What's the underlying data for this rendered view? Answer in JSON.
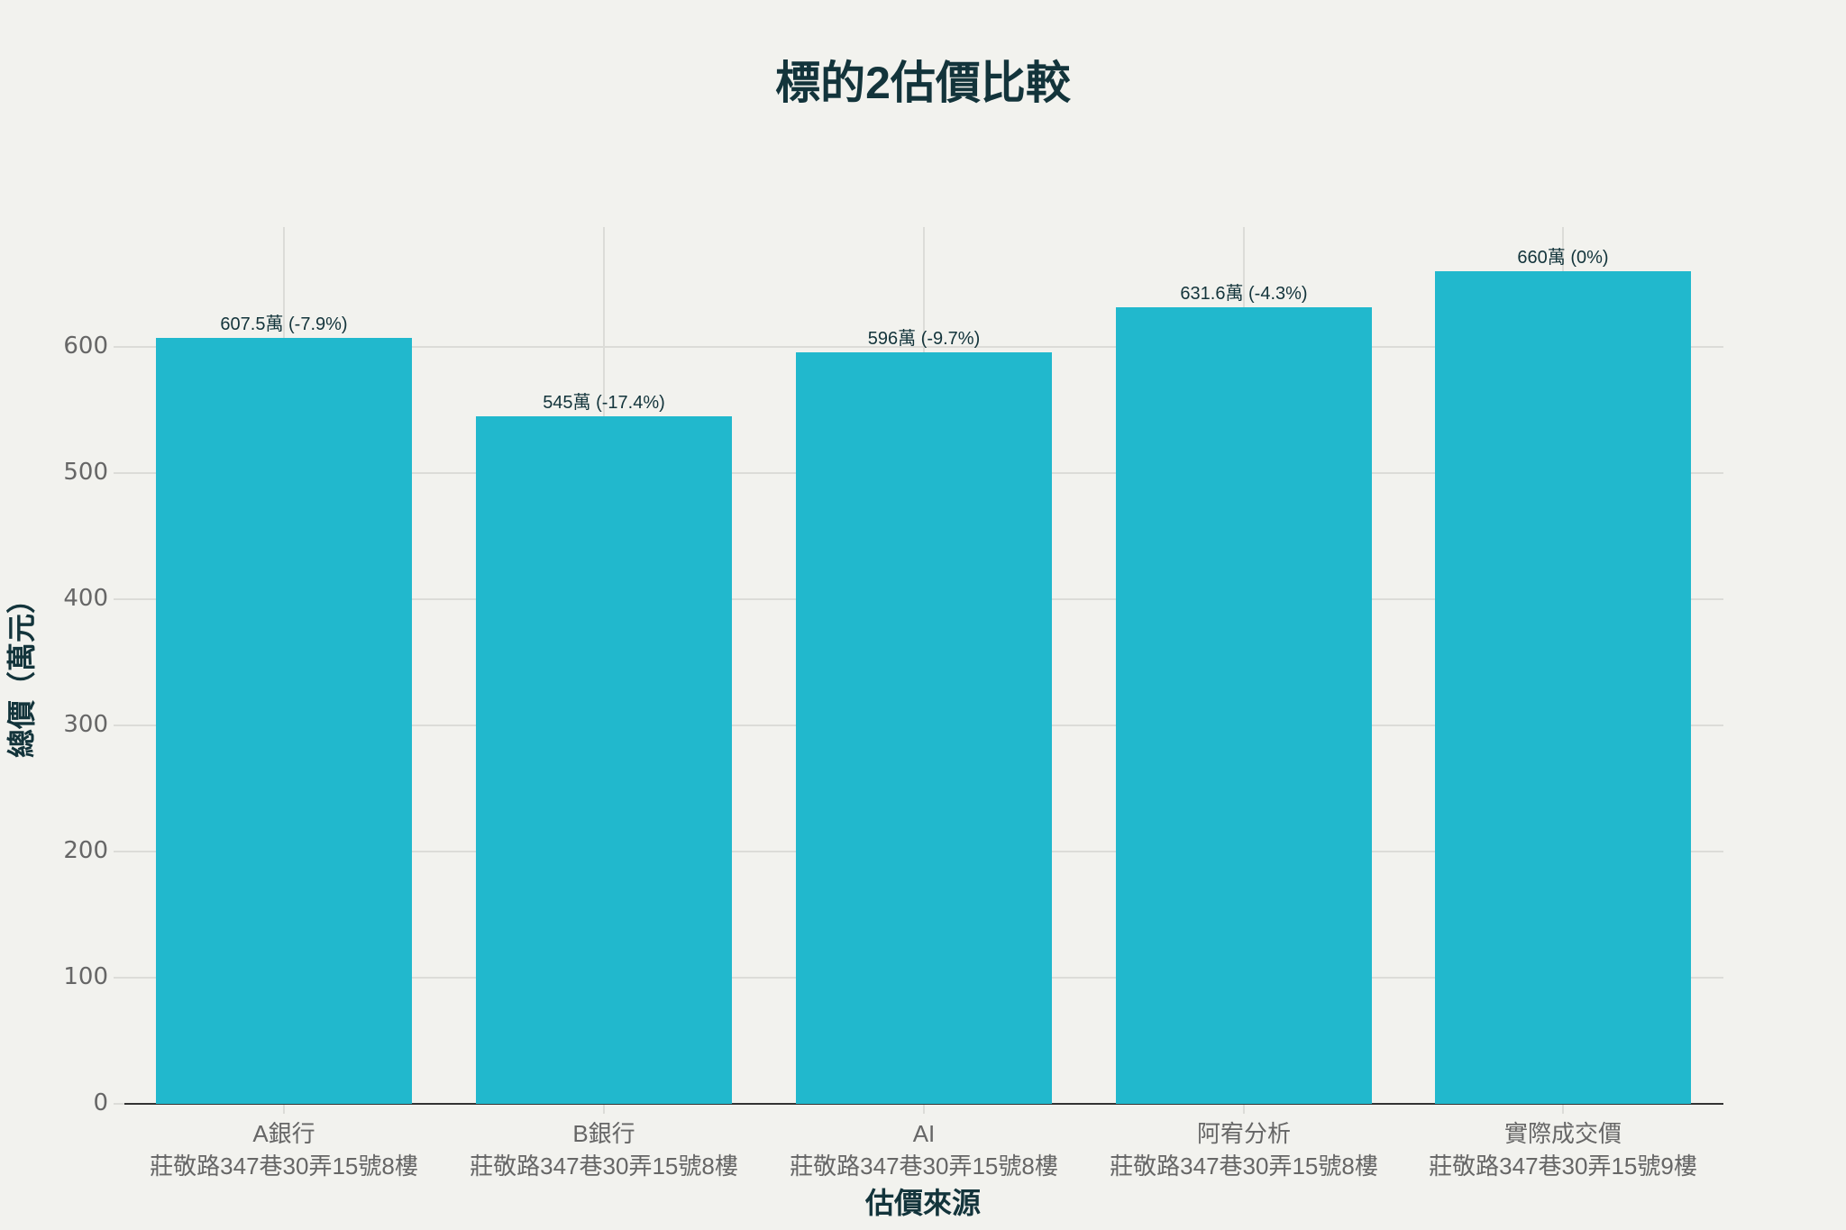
{
  "chart_data": {
    "type": "bar",
    "title": "標的2估價比較",
    "xlabel": "估價來源",
    "ylabel": "總價（萬元）",
    "categories": [
      {
        "source": "A銀行",
        "address": "莊敬路347巷30弄15號8樓"
      },
      {
        "source": "B銀行",
        "address": "莊敬路347巷30弄15號8樓"
      },
      {
        "source": "AI",
        "address": "莊敬路347巷30弄15號8樓"
      },
      {
        "source": "阿宥分析",
        "address": "莊敬路347巷30弄15號8樓"
      },
      {
        "source": "實際成交價",
        "address": "莊敬路347巷30弄15號9樓"
      }
    ],
    "values": [
      607.5,
      545,
      596,
      631.6,
      660
    ],
    "data_labels": [
      "607.5萬 (-7.9%)",
      "545萬 (-17.4%)",
      "596萬 (-9.7%)",
      "631.6萬 (-4.3%)",
      "660萬 (0%)"
    ],
    "y_ticks": [
      "0",
      "100",
      "200",
      "300",
      "400",
      "500",
      "600"
    ],
    "ylim": [
      0,
      700
    ],
    "grid": true,
    "legend": "none",
    "bar_color": "#21b8cd"
  }
}
